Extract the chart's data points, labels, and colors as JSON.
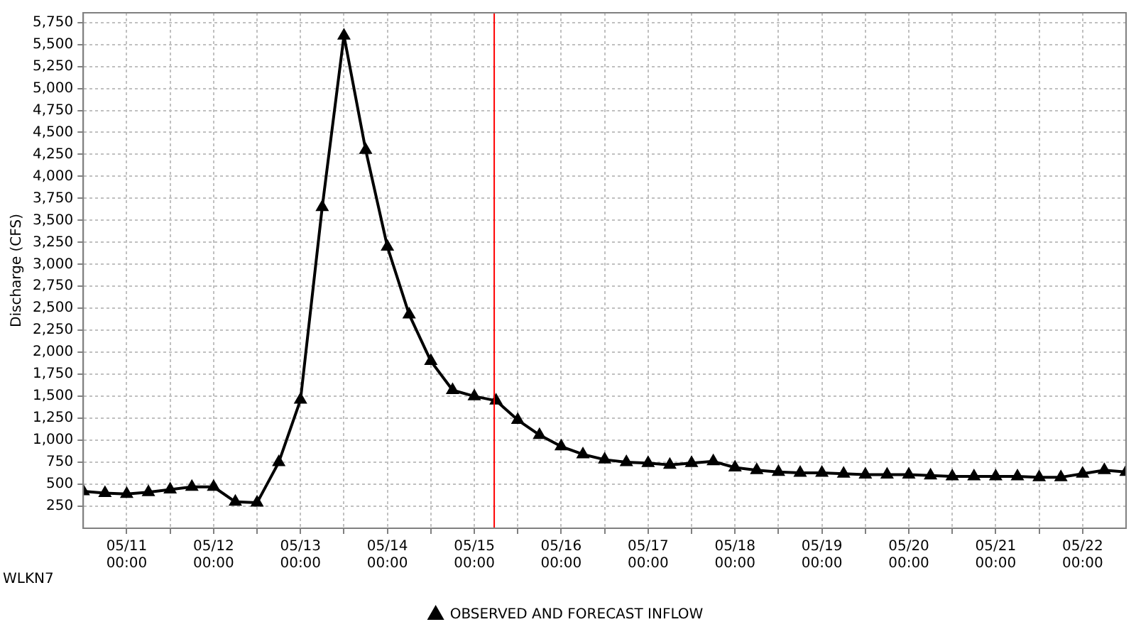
{
  "chart_data": {
    "type": "line",
    "ylabel": "Discharge (CFS)",
    "annotations": [
      "WLKN7"
    ],
    "x": [
      "--05-10T12:00",
      "--05-10T18:00",
      "--05-11T00:00",
      "--05-11T06:00",
      "--05-11T12:00",
      "--05-11T18:00",
      "--05-12T00:00",
      "--05-12T06:00",
      "--05-12T12:00",
      "--05-12T18:00",
      "--05-13T00:00",
      "--05-13T06:00",
      "--05-13T12:00",
      "--05-13T18:00",
      "--05-14T00:00",
      "--05-14T06:00",
      "--05-14T12:00",
      "--05-14T18:00",
      "--05-15T00:00",
      "--05-15T06:00",
      "--05-15T12:00",
      "--05-15T18:00",
      "--05-16T00:00",
      "--05-16T06:00",
      "--05-16T12:00",
      "--05-16T18:00",
      "--05-17T00:00",
      "--05-17T06:00",
      "--05-17T12:00",
      "--05-17T18:00",
      "--05-18T00:00",
      "--05-18T06:00",
      "--05-18T12:00",
      "--05-18T18:00",
      "--05-19T00:00",
      "--05-19T06:00",
      "--05-19T12:00",
      "--05-19T18:00",
      "--05-20T00:00",
      "--05-20T06:00",
      "--05-20T12:00",
      "--05-20T18:00",
      "--05-21T00:00",
      "--05-21T06:00",
      "--05-21T12:00",
      "--05-21T18:00",
      "--05-22T00:00",
      "--05-22T06:00",
      "--05-22T12:00"
    ],
    "series": [
      {
        "name": "OBSERVED AND FORECAST INFLOW",
        "color": "#000000",
        "values": [
          420,
          400,
          390,
          410,
          440,
          470,
          470,
          300,
          290,
          750,
          1460,
          3650,
          5600,
          4300,
          3200,
          2430,
          1900,
          1570,
          1500,
          1450,
          1230,
          1060,
          930,
          840,
          780,
          750,
          740,
          720,
          740,
          760,
          690,
          660,
          640,
          630,
          630,
          620,
          610,
          610,
          610,
          600,
          590,
          590,
          590,
          590,
          580,
          580,
          620,
          660,
          640
        ]
      }
    ],
    "xlim": [
      "--05-10T12:00",
      "--05-22T12:00"
    ],
    "xticks": [
      {
        "value": "--05-11T00:00",
        "label": "05/11\n00:00"
      },
      {
        "value": "--05-11T12:00",
        "label": null
      },
      {
        "value": "--05-12T00:00",
        "label": "05/12\n00:00"
      },
      {
        "value": "--05-12T12:00",
        "label": null
      },
      {
        "value": "--05-13T00:00",
        "label": "05/13\n00:00"
      },
      {
        "value": "--05-13T12:00",
        "label": null
      },
      {
        "value": "--05-14T00:00",
        "label": "05/14\n00:00"
      },
      {
        "value": "--05-14T12:00",
        "label": null
      },
      {
        "value": "--05-15T00:00",
        "label": "05/15\n00:00"
      },
      {
        "value": "--05-15T12:00",
        "label": null
      },
      {
        "value": "--05-16T00:00",
        "label": "05/16\n00:00"
      },
      {
        "value": "--05-16T12:00",
        "label": null
      },
      {
        "value": "--05-17T00:00",
        "label": "05/17\n00:00"
      },
      {
        "value": "--05-17T12:00",
        "label": null
      },
      {
        "value": "--05-18T00:00",
        "label": "05/18\n00:00"
      },
      {
        "value": "--05-18T12:00",
        "label": null
      },
      {
        "value": "--05-19T00:00",
        "label": "05/19\n00:00"
      },
      {
        "value": "--05-19T12:00",
        "label": null
      },
      {
        "value": "--05-20T00:00",
        "label": "05/20\n00:00"
      },
      {
        "value": "--05-20T12:00",
        "label": null
      },
      {
        "value": "--05-21T00:00",
        "label": "05/21\n00:00"
      },
      {
        "value": "--05-21T12:00",
        "label": null
      },
      {
        "value": "--05-22T00:00",
        "label": "05/22\n00:00"
      }
    ],
    "ylim": [
      0,
      5860
    ],
    "yticks": [
      {
        "value": 250,
        "label": "250"
      },
      {
        "value": 500,
        "label": "500"
      },
      {
        "value": 750,
        "label": "750"
      },
      {
        "value": 1000,
        "label": "1,000"
      },
      {
        "value": 1250,
        "label": "1,250"
      },
      {
        "value": 1500,
        "label": "1,500"
      },
      {
        "value": 1750,
        "label": "1,750"
      },
      {
        "value": 2000,
        "label": "2,000"
      },
      {
        "value": 2250,
        "label": "2,250"
      },
      {
        "value": 2500,
        "label": "2,500"
      },
      {
        "value": 2750,
        "label": "2,750"
      },
      {
        "value": 3000,
        "label": "3,000"
      },
      {
        "value": 3250,
        "label": "3,250"
      },
      {
        "value": 3500,
        "label": "3,500"
      },
      {
        "value": 3750,
        "label": "3,750"
      },
      {
        "value": 4000,
        "label": "4,000"
      },
      {
        "value": 4250,
        "label": "4,250"
      },
      {
        "value": 4500,
        "label": "4,500"
      },
      {
        "value": 4750,
        "label": "4,750"
      },
      {
        "value": 5000,
        "label": "5,000"
      },
      {
        "value": 5250,
        "label": "5,250"
      },
      {
        "value": 5500,
        "label": "5,500"
      },
      {
        "value": 5750,
        "label": "5,750"
      }
    ],
    "ref_lines": [
      {
        "axis": "x",
        "value": "--05-15T05:30",
        "color": "#ff0000",
        "line_style": "solid"
      }
    ],
    "grid": true,
    "legend": "bottom",
    "marker": "triangle",
    "line_style": "solid"
  }
}
